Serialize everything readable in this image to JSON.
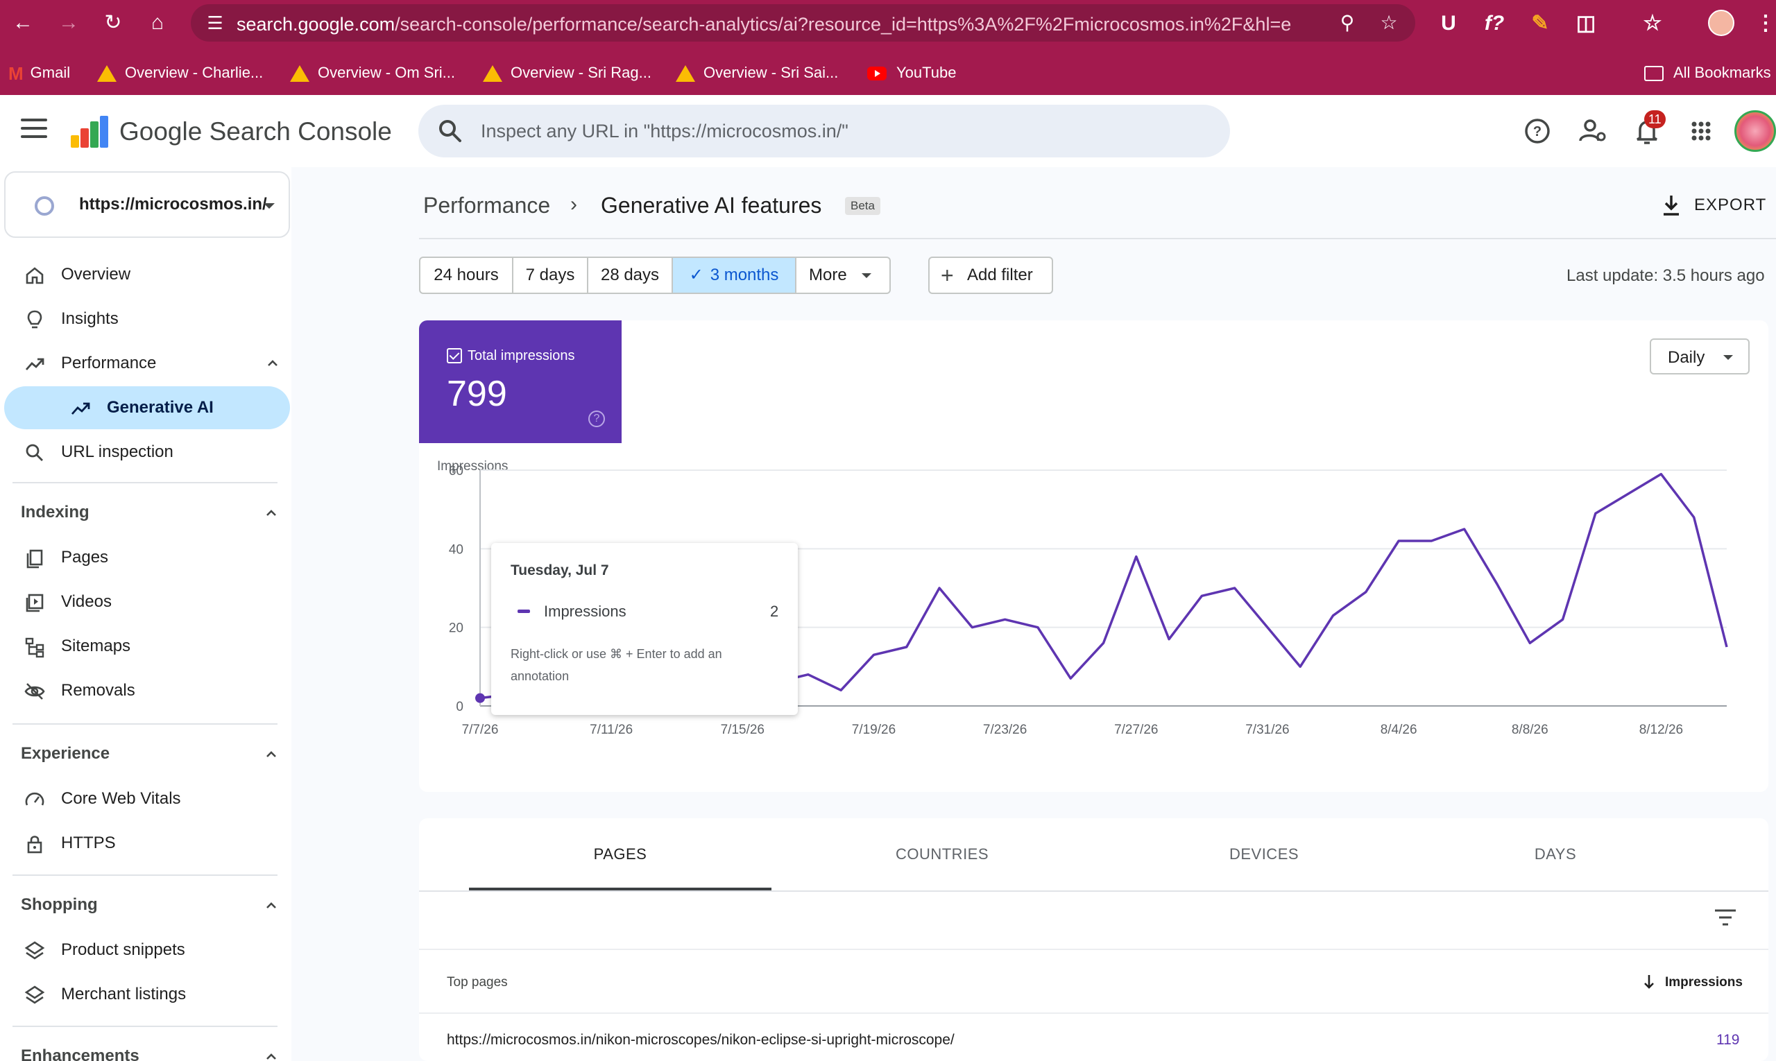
{
  "browser": {
    "url_host": "search.google.com",
    "url_path": "/search-console/performance/search-analytics/ai?resource_id=https%3A%2F%2Fmicrocosmos.in%2F&hl=en...",
    "bookmarks": [
      "Gmail",
      "Overview - Charlie...",
      "Overview - Om Sri...",
      "Overview - Sri Rag...",
      "Overview - Sri Sai...",
      "YouTube"
    ],
    "all_bookmarks": "All Bookmarks"
  },
  "header": {
    "title": "Google Search Console",
    "search_placeholder": "Inspect any URL in \"https://microcosmos.in/\"",
    "notification_count": "11"
  },
  "sidebar": {
    "property": "https://microcosmos.in/",
    "items": [
      {
        "label": "Overview",
        "icon": "home-icon"
      },
      {
        "label": "Insights",
        "icon": "lightbulb-icon"
      },
      {
        "label": "Performance",
        "icon": "trending-up-icon"
      },
      {
        "label": "Generative AI",
        "icon": "trending-up-icon"
      },
      {
        "label": "URL inspection",
        "icon": "search-icon"
      }
    ],
    "sections": [
      {
        "title": "Indexing",
        "items": [
          "Pages",
          "Videos",
          "Sitemaps",
          "Removals"
        ]
      },
      {
        "title": "Experience",
        "items": [
          "Core Web Vitals",
          "HTTPS"
        ]
      },
      {
        "title": "Shopping",
        "items": [
          "Product snippets",
          "Merchant listings"
        ]
      },
      {
        "title": "Enhancements",
        "items": []
      }
    ]
  },
  "breadcrumb": {
    "parent": "Performance",
    "separator": "›",
    "current": "Generative AI features",
    "badge": "Beta"
  },
  "export_label": "EXPORT",
  "date_range": {
    "options": [
      "24 hours",
      "7 days",
      "28 days",
      "3 months",
      "More"
    ],
    "selected": "3 months"
  },
  "add_filter_label": "Add filter",
  "last_update": "Last update: 3.5 hours ago",
  "metric": {
    "label": "Total impressions",
    "value": "799",
    "color": "#5e35b1"
  },
  "granularity": "Daily",
  "chart_data": {
    "type": "line",
    "ylabel": "Impressions",
    "ylim": [
      0,
      60
    ],
    "yticks": [
      0,
      20,
      40,
      60
    ],
    "xtick_labels": [
      "7/7/26",
      "7/11/26",
      "7/15/26",
      "7/19/26",
      "7/23/26",
      "7/27/26",
      "7/31/26",
      "8/4/26",
      "8/8/26",
      "8/12/26"
    ],
    "series": [
      {
        "name": "Impressions",
        "color": "#5e35b1",
        "values": [
          2,
          3,
          6,
          1,
          1,
          2,
          3,
          1,
          0,
          6,
          8,
          4,
          13,
          15,
          30,
          20,
          22,
          20,
          7,
          16,
          38,
          17,
          28,
          30,
          20,
          10,
          23,
          29,
          42,
          42,
          45,
          31,
          16,
          22,
          49,
          54,
          59,
          48,
          15
        ]
      }
    ]
  },
  "tooltip": {
    "date": "Tuesday, Jul 7",
    "series": "Impressions",
    "value": "2",
    "hint": "Right-click or use ⌘ + Enter to add an annotation"
  },
  "table": {
    "tabs": [
      "PAGES",
      "COUNTRIES",
      "DEVICES",
      "DAYS"
    ],
    "active_tab": "PAGES",
    "col_left": "Top pages",
    "col_right": "Impressions",
    "rows": [
      {
        "url": "https://microcosmos.in/nikon-microscopes/nikon-eclipse-si-upright-microscope/",
        "impressions": "119"
      }
    ]
  }
}
